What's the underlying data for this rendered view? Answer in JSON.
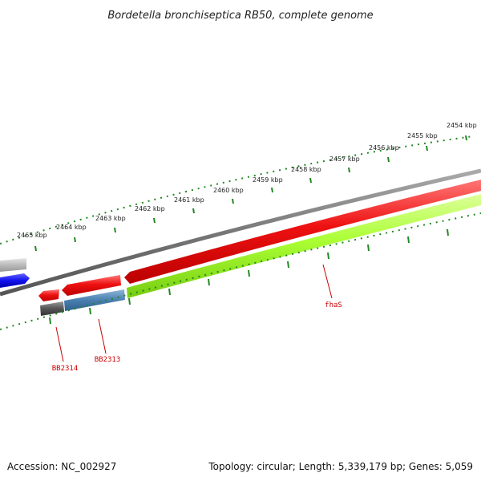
{
  "title": "Bordetella bronchiseptica RB50, complete genome",
  "footer": {
    "accession": "Accession: NC_002927",
    "summary": "Topology: circular; Length: 5,339,179 bp; Genes: 5,059"
  },
  "ticks": [
    "2454 kbp",
    "2455 kbp",
    "2456 kbp",
    "2457 kbp",
    "2458 kbp",
    "2459 kbp",
    "2460 kbp",
    "2461 kbp",
    "2462 kbp",
    "2463 kbp",
    "2464 kbp",
    "2465 kbp"
  ],
  "gene_labels": [
    "fhaS",
    "BB2313",
    "BB2314"
  ],
  "colors": {
    "red_gene": "#ee1111",
    "green_gene": "#aaff33",
    "blue_gene": "#1111ee",
    "steel_gene": "#4a7fb0",
    "grey_gene": "#555555",
    "light_grey_gene": "#bbbbbb",
    "backbone": "#777777",
    "tick_marks": "#228822",
    "label": "#cc0000"
  }
}
